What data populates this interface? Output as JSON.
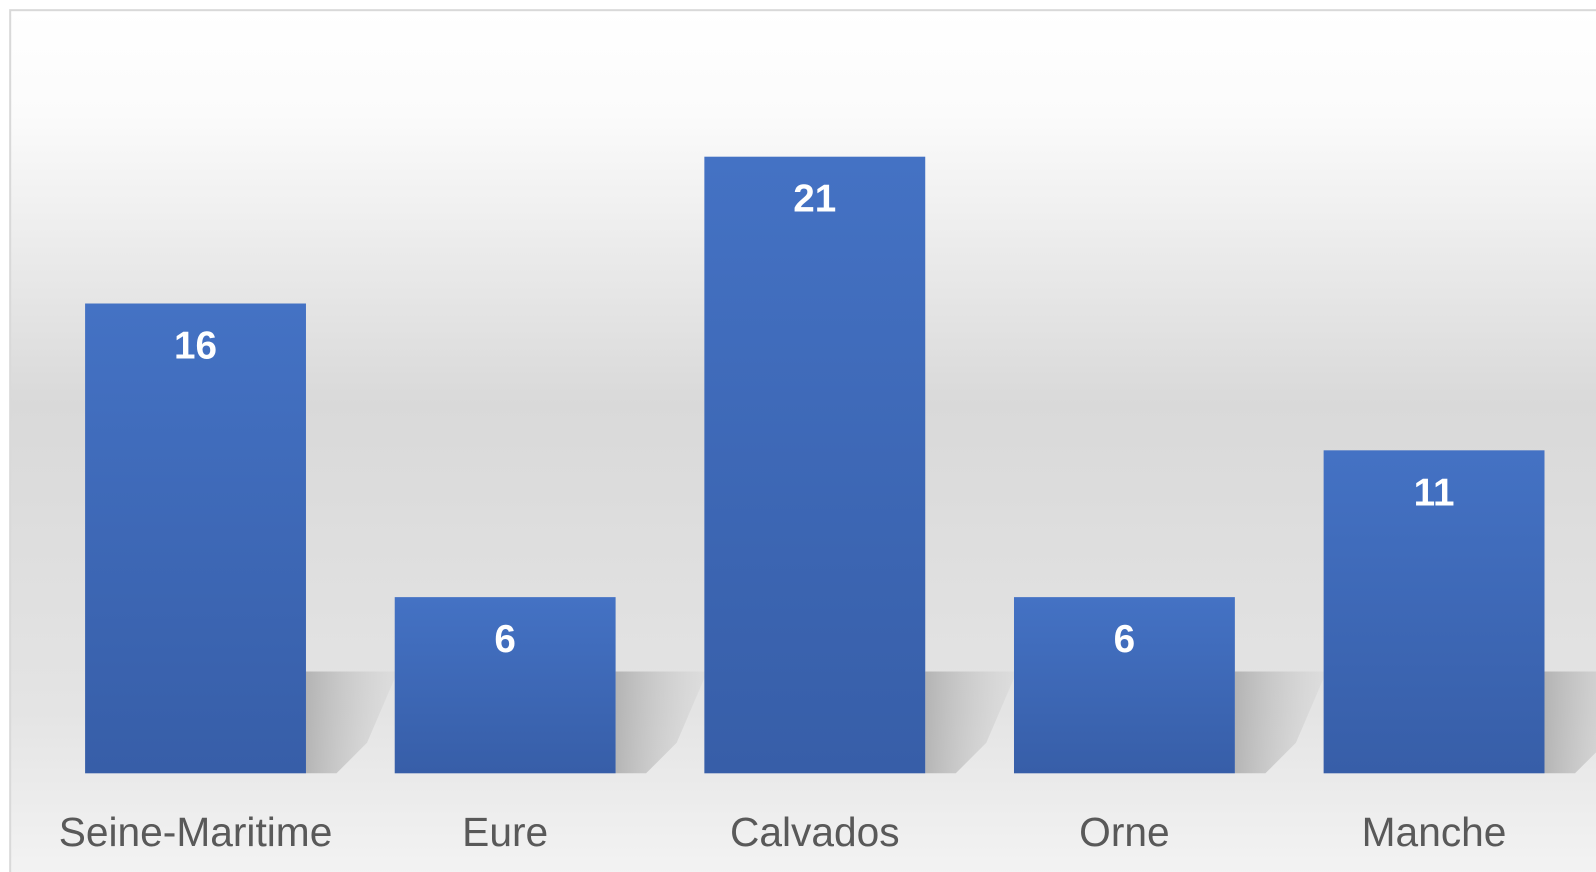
{
  "chart_data": {
    "type": "bar",
    "categories": [
      "Seine-Maritime",
      "Eure",
      "Calvados",
      "Orne",
      "Manche"
    ],
    "values": [
      16,
      6,
      21,
      6,
      11
    ],
    "color": "#4472c4"
  }
}
